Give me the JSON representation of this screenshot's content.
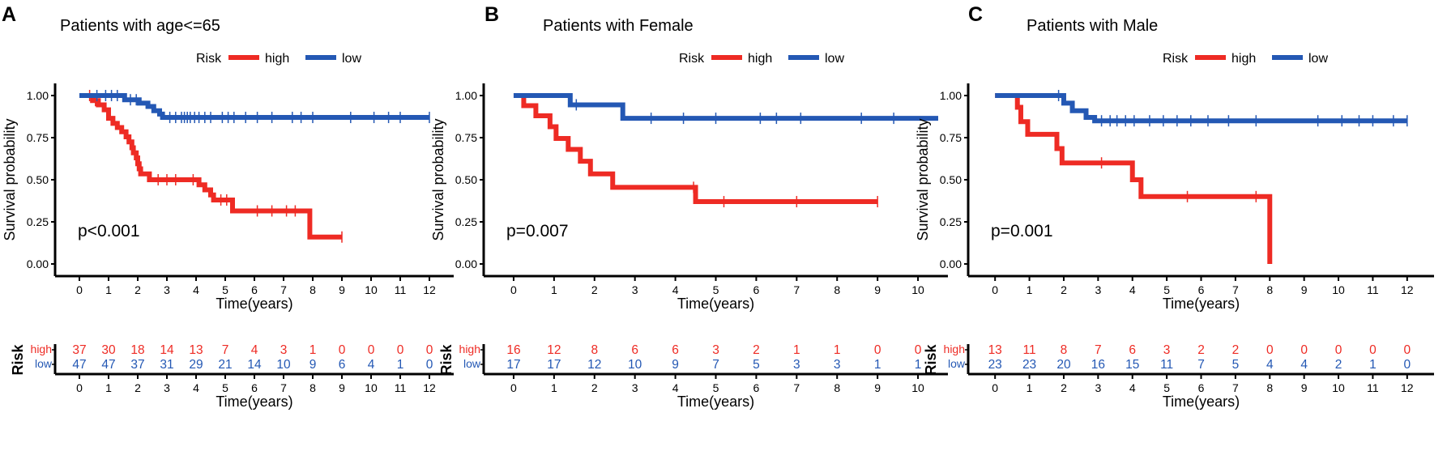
{
  "colors": {
    "high": "#ee2b24",
    "low": "#2458b4",
    "axis": "#000000"
  },
  "chart_data": [
    {
      "type": "line",
      "panel_label": "A",
      "title": "Patients with age<=65",
      "legend_title": "Risk",
      "legend_entries": [
        "high",
        "low"
      ],
      "xlabel": "Time(years)",
      "ylabel": "Survival probability",
      "xlim": [
        -0.5,
        12.5
      ],
      "ylim": [
        0,
        1
      ],
      "x_ticks": [
        "0",
        "1",
        "2",
        "3",
        "4",
        "5",
        "6",
        "7",
        "8",
        "9",
        "10",
        "11",
        "12"
      ],
      "y_ticks": [
        "0.00",
        "0.25",
        "0.50",
        "0.75",
        "1.00"
      ],
      "p_value": "p<0.001",
      "series": [
        {
          "name": "high",
          "steps": [
            [
              0,
              1
            ],
            [
              0.45,
              0.97
            ],
            [
              0.65,
              0.945
            ],
            [
              0.85,
              0.915
            ],
            [
              1.0,
              0.865
            ],
            [
              1.15,
              0.835
            ],
            [
              1.3,
              0.81
            ],
            [
              1.45,
              0.785
            ],
            [
              1.6,
              0.755
            ],
            [
              1.7,
              0.725
            ],
            [
              1.8,
              0.69
            ],
            [
              1.85,
              0.66
            ],
            [
              1.95,
              0.63
            ],
            [
              2.0,
              0.595
            ],
            [
              2.05,
              0.565
            ],
            [
              2.1,
              0.535
            ],
            [
              2.4,
              0.5
            ],
            [
              4.1,
              0.47
            ],
            [
              4.3,
              0.44
            ],
            [
              4.5,
              0.41
            ],
            [
              4.6,
              0.38
            ],
            [
              5.25,
              0.315
            ],
            [
              7.9,
              0.16
            ],
            [
              9.0,
              0.16
            ]
          ],
          "censors": [
            [
              0.35,
              1
            ],
            [
              0.55,
              0.97
            ],
            [
              2.7,
              0.5
            ],
            [
              3.0,
              0.5
            ],
            [
              3.3,
              0.5
            ],
            [
              3.9,
              0.5
            ],
            [
              4.85,
              0.38
            ],
            [
              5.05,
              0.38
            ],
            [
              6.1,
              0.315
            ],
            [
              6.6,
              0.315
            ],
            [
              7.1,
              0.315
            ],
            [
              7.4,
              0.315
            ],
            [
              9.0,
              0.16
            ]
          ]
        },
        {
          "name": "low",
          "steps": [
            [
              0,
              1
            ],
            [
              1.55,
              0.975
            ],
            [
              2.05,
              0.955
            ],
            [
              2.35,
              0.935
            ],
            [
              2.55,
              0.91
            ],
            [
              2.75,
              0.89
            ],
            [
              2.85,
              0.87
            ],
            [
              12,
              0.87
            ]
          ],
          "censors": [
            [
              0.6,
              1
            ],
            [
              0.9,
              1
            ],
            [
              1.1,
              1
            ],
            [
              1.3,
              1
            ],
            [
              1.75,
              0.975
            ],
            [
              1.95,
              0.975
            ],
            [
              3.1,
              0.87
            ],
            [
              3.3,
              0.87
            ],
            [
              3.5,
              0.87
            ],
            [
              3.6,
              0.87
            ],
            [
              3.7,
              0.87
            ],
            [
              3.8,
              0.87
            ],
            [
              3.95,
              0.87
            ],
            [
              4.1,
              0.87
            ],
            [
              4.3,
              0.87
            ],
            [
              4.5,
              0.87
            ],
            [
              4.9,
              0.87
            ],
            [
              5.1,
              0.87
            ],
            [
              5.3,
              0.87
            ],
            [
              5.7,
              0.87
            ],
            [
              6.1,
              0.87
            ],
            [
              6.6,
              0.87
            ],
            [
              7.3,
              0.87
            ],
            [
              7.6,
              0.87
            ],
            [
              8.0,
              0.87
            ],
            [
              9.3,
              0.87
            ],
            [
              10.1,
              0.87
            ],
            [
              10.6,
              0.87
            ],
            [
              11.0,
              0.87
            ],
            [
              12.0,
              0.87
            ]
          ]
        }
      ],
      "risk_table": {
        "title": "Risk",
        "xlabel": "Time(years)",
        "x_ticks": [
          "0",
          "1",
          "2",
          "3",
          "4",
          "5",
          "6",
          "7",
          "8",
          "9",
          "10",
          "11",
          "12"
        ],
        "rows": [
          {
            "name": "high",
            "values": [
              "37",
              "30",
              "18",
              "14",
              "13",
              "7",
              "4",
              "3",
              "1",
              "0",
              "0",
              "0",
              "0"
            ]
          },
          {
            "name": "low",
            "values": [
              "47",
              "47",
              "37",
              "31",
              "29",
              "21",
              "14",
              "10",
              "9",
              "6",
              "4",
              "1",
              "0"
            ]
          }
        ]
      }
    },
    {
      "type": "line",
      "panel_label": "B",
      "title": "Patients with Female",
      "legend_title": "Risk",
      "legend_entries": [
        "high",
        "low"
      ],
      "xlabel": "Time(years)",
      "ylabel": "Survival probability",
      "xlim": [
        -0.5,
        10.5
      ],
      "ylim": [
        0,
        1
      ],
      "x_ticks": [
        "0",
        "1",
        "2",
        "3",
        "4",
        "5",
        "6",
        "7",
        "8",
        "9",
        "10"
      ],
      "y_ticks": [
        "0.00",
        "0.25",
        "0.50",
        "0.75",
        "1.00"
      ],
      "p_value": "p=0.007",
      "series": [
        {
          "name": "high",
          "steps": [
            [
              0,
              1
            ],
            [
              0.25,
              0.94
            ],
            [
              0.55,
              0.88
            ],
            [
              0.9,
              0.815
            ],
            [
              1.05,
              0.745
            ],
            [
              1.35,
              0.68
            ],
            [
              1.65,
              0.61
            ],
            [
              1.9,
              0.535
            ],
            [
              2.45,
              0.455
            ],
            [
              4.5,
              0.37
            ],
            [
              9.0,
              0.37
            ]
          ],
          "censors": [
            [
              4.45,
              0.455
            ],
            [
              5.2,
              0.37
            ],
            [
              7.0,
              0.37
            ],
            [
              9.0,
              0.37
            ]
          ]
        },
        {
          "name": "low",
          "steps": [
            [
              0,
              1
            ],
            [
              1.4,
              0.945
            ],
            [
              2.7,
              0.865
            ],
            [
              10.5,
              0.865
            ]
          ],
          "censors": [
            [
              1.55,
              0.945
            ],
            [
              3.4,
              0.865
            ],
            [
              4.2,
              0.865
            ],
            [
              5.0,
              0.865
            ],
            [
              6.1,
              0.865
            ],
            [
              6.5,
              0.865
            ],
            [
              7.1,
              0.865
            ],
            [
              8.6,
              0.865
            ],
            [
              9.4,
              0.865
            ]
          ]
        }
      ],
      "risk_table": {
        "title": "Risk",
        "xlabel": "Time(years)",
        "x_ticks": [
          "0",
          "1",
          "2",
          "3",
          "4",
          "5",
          "6",
          "7",
          "8",
          "9",
          "10"
        ],
        "rows": [
          {
            "name": "high",
            "values": [
              "16",
              "12",
              "8",
              "6",
              "6",
              "3",
              "2",
              "1",
              "1",
              "0",
              "0"
            ]
          },
          {
            "name": "low",
            "values": [
              "17",
              "17",
              "12",
              "10",
              "9",
              "7",
              "5",
              "3",
              "3",
              "1",
              "1"
            ]
          }
        ]
      }
    },
    {
      "type": "line",
      "panel_label": "C",
      "title": "Patients with Male",
      "legend_title": "Risk",
      "legend_entries": [
        "high",
        "low"
      ],
      "xlabel": "Time(years)",
      "ylabel": "Survival probability",
      "xlim": [
        -0.5,
        12.5
      ],
      "ylim": [
        0,
        1
      ],
      "x_ticks": [
        "0",
        "1",
        "2",
        "3",
        "4",
        "5",
        "6",
        "7",
        "8",
        "9",
        "10",
        "11",
        "12"
      ],
      "y_ticks": [
        "0.00",
        "0.25",
        "0.50",
        "0.75",
        "1.00"
      ],
      "p_value": "p=0.001",
      "series": [
        {
          "name": "high",
          "steps": [
            [
              0,
              1
            ],
            [
              0.65,
              0.93
            ],
            [
              0.75,
              0.845
            ],
            [
              0.95,
              0.77
            ],
            [
              1.8,
              0.685
            ],
            [
              1.95,
              0.6
            ],
            [
              4.0,
              0.5
            ],
            [
              4.25,
              0.4
            ],
            [
              8.0,
              0.0
            ]
          ],
          "censors": [
            [
              3.1,
              0.6
            ],
            [
              5.6,
              0.4
            ],
            [
              7.6,
              0.4
            ]
          ]
        },
        {
          "name": "low",
          "steps": [
            [
              0,
              1
            ],
            [
              2.0,
              0.955
            ],
            [
              2.25,
              0.91
            ],
            [
              2.65,
              0.87
            ],
            [
              2.9,
              0.85
            ],
            [
              12,
              0.85
            ]
          ],
          "censors": [
            [
              1.85,
              1
            ],
            [
              3.1,
              0.85
            ],
            [
              3.35,
              0.85
            ],
            [
              3.55,
              0.85
            ],
            [
              3.8,
              0.85
            ],
            [
              4.05,
              0.85
            ],
            [
              4.5,
              0.85
            ],
            [
              4.9,
              0.85
            ],
            [
              5.3,
              0.85
            ],
            [
              5.7,
              0.85
            ],
            [
              6.2,
              0.85
            ],
            [
              6.8,
              0.85
            ],
            [
              7.6,
              0.85
            ],
            [
              9.4,
              0.85
            ],
            [
              10.1,
              0.85
            ],
            [
              10.6,
              0.85
            ],
            [
              11.0,
              0.85
            ],
            [
              11.6,
              0.85
            ],
            [
              12.0,
              0.85
            ]
          ]
        }
      ],
      "risk_table": {
        "title": "Risk",
        "xlabel": "Time(years)",
        "x_ticks": [
          "0",
          "1",
          "2",
          "3",
          "4",
          "5",
          "6",
          "7",
          "8",
          "9",
          "10",
          "11",
          "12"
        ],
        "rows": [
          {
            "name": "high",
            "values": [
              "13",
              "11",
              "8",
              "7",
              "6",
              "3",
              "2",
              "2",
              "0",
              "0",
              "0",
              "0",
              "0"
            ]
          },
          {
            "name": "low",
            "values": [
              "23",
              "23",
              "20",
              "16",
              "15",
              "11",
              "7",
              "5",
              "4",
              "4",
              "2",
              "1",
              "0"
            ]
          }
        ]
      }
    }
  ]
}
